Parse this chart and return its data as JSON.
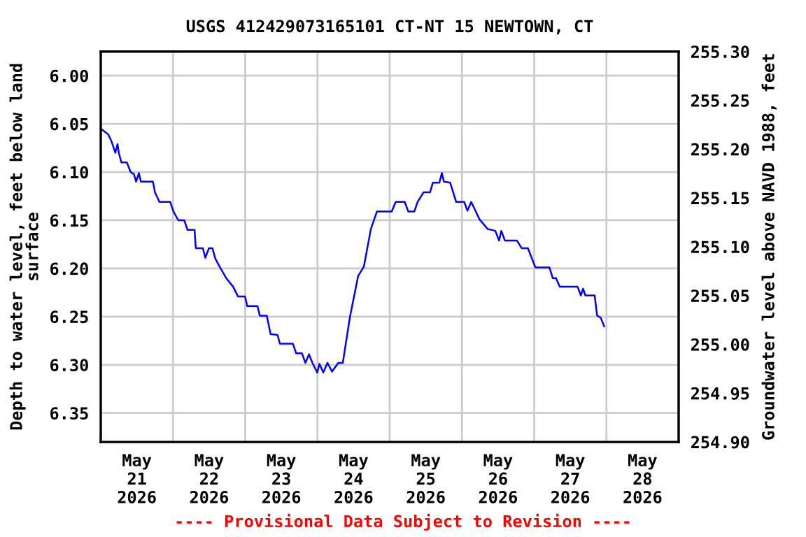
{
  "chart_data": {
    "type": "line",
    "title": "USGS 412429073165101 CT-NT 15 NEWTOWN, CT",
    "ylabel": "Depth to water level, feet below land\nsurface",
    "y2label": "Groundwater level above NAVD 1988, feet",
    "annotations": [
      "---- Provisional Data Subject to Revision ----"
    ],
    "xlim": [
      "2026-05-21T00:00",
      "2026-05-29T00:00"
    ],
    "xticks": [
      {
        "value": "2026-05-21T00:00",
        "label": null
      },
      {
        "value": "2026-05-22T00:00",
        "label": null
      },
      {
        "value": "2026-05-23T00:00",
        "label": null
      },
      {
        "value": "2026-05-24T00:00",
        "label": null
      },
      {
        "value": "2026-05-25T00:00",
        "label": null
      },
      {
        "value": "2026-05-26T00:00",
        "label": null
      },
      {
        "value": "2026-05-27T00:00",
        "label": null
      },
      {
        "value": "2026-05-28T00:00",
        "label": null
      },
      {
        "value": "2026-05-29T00:00",
        "label": null
      },
      {
        "value": "2026-05-21T12:00",
        "label": "May\n21\n2026"
      },
      {
        "value": "2026-05-22T12:00",
        "label": "May\n22\n2026"
      },
      {
        "value": "2026-05-23T12:00",
        "label": "May\n23\n2026"
      },
      {
        "value": "2026-05-24T12:00",
        "label": "May\n24\n2026"
      },
      {
        "value": "2026-05-25T12:00",
        "label": "May\n25\n2026"
      },
      {
        "value": "2026-05-26T12:00",
        "label": "May\n26\n2026"
      },
      {
        "value": "2026-05-27T12:00",
        "label": "May\n27\n2026"
      },
      {
        "value": "2026-05-28T12:00",
        "label": "May\n28\n2026"
      }
    ],
    "ylim": [
      6.38,
      5.975
    ],
    "yticks": [
      {
        "value": 6.0,
        "label": "6.00"
      },
      {
        "value": 6.05,
        "label": "6.05"
      },
      {
        "value": 6.1,
        "label": "6.10"
      },
      {
        "value": 6.15,
        "label": "6.15"
      },
      {
        "value": 6.2,
        "label": "6.20"
      },
      {
        "value": 6.25,
        "label": "6.25"
      },
      {
        "value": 6.3,
        "label": "6.30"
      },
      {
        "value": 6.35,
        "label": "6.35"
      }
    ],
    "y2lim": [
      254.9,
      255.3
    ],
    "y2ticks": [
      {
        "value": 254.9,
        "label": "254.90"
      },
      {
        "value": 254.95,
        "label": "254.95"
      },
      {
        "value": 255.0,
        "label": "255.00"
      },
      {
        "value": 255.05,
        "label": "255.05"
      },
      {
        "value": 255.1,
        "label": "255.10"
      },
      {
        "value": 255.15,
        "label": "255.15"
      },
      {
        "value": 255.2,
        "label": "255.20"
      },
      {
        "value": 255.25,
        "label": "255.25"
      },
      {
        "value": 255.3,
        "label": "255.30"
      }
    ],
    "grid": true,
    "legend": false,
    "marker": "none",
    "line_style": "solid",
    "series": [
      {
        "color": "#0000ff",
        "x": [
          "2026-05-21T00:00",
          "2026-05-21T02:30",
          "2026-05-21T03:40",
          "2026-05-21T04:50",
          "2026-05-21T05:35",
          "2026-05-21T06:00",
          "2026-05-21T06:50",
          "2026-05-21T08:40",
          "2026-05-21T09:55",
          "2026-05-21T11:00",
          "2026-05-21T11:45",
          "2026-05-21T12:40",
          "2026-05-21T13:20",
          "2026-05-21T17:20",
          "2026-05-21T18:00",
          "2026-05-21T19:30",
          "2026-05-21T23:05",
          "2026-05-22T00:10",
          "2026-05-22T01:45",
          "2026-05-22T03:45",
          "2026-05-22T04:50",
          "2026-05-22T07:10",
          "2026-05-22T07:35",
          "2026-05-22T09:55",
          "2026-05-22T10:45",
          "2026-05-22T11:55",
          "2026-05-22T13:05",
          "2026-05-22T14:05",
          "2026-05-22T15:40",
          "2026-05-22T17:40",
          "2026-05-22T20:00",
          "2026-05-22T21:35",
          "2026-05-22T23:55",
          "2026-05-23T00:40",
          "2026-05-23T04:05",
          "2026-05-23T04:50",
          "2026-05-23T07:10",
          "2026-05-23T08:25",
          "2026-05-23T10:45",
          "2026-05-23T11:30",
          "2026-05-23T15:50",
          "2026-05-23T16:55",
          "2026-05-23T18:50",
          "2026-05-23T20:00",
          "2026-05-23T21:10",
          "2026-05-23T22:20",
          "2026-05-23T23:55",
          "2026-05-24T00:40",
          "2026-05-24T01:55",
          "2026-05-24T03:20",
          "2026-05-24T04:50",
          "2026-05-24T06:55",
          "2026-05-24T08:25",
          "2026-05-24T10:45",
          "2026-05-24T13:30",
          "2026-05-24T15:25",
          "2026-05-24T17:45",
          "2026-05-24T19:45",
          "2026-05-25T00:40",
          "2026-05-25T02:00",
          "2026-05-25T05:00",
          "2026-05-25T06:10",
          "2026-05-25T08:10",
          "2026-05-25T09:15",
          "2026-05-25T11:15",
          "2026-05-25T13:25",
          "2026-05-25T14:20",
          "2026-05-25T16:30",
          "2026-05-25T17:20",
          "2026-05-25T18:00",
          "2026-05-25T20:05",
          "2026-05-25T22:05",
          "2026-05-26T00:45",
          "2026-05-26T01:50",
          "2026-05-26T03:05",
          "2026-05-26T05:50",
          "2026-05-26T08:30",
          "2026-05-26T11:05",
          "2026-05-26T12:20",
          "2026-05-26T13:05",
          "2026-05-26T14:15",
          "2026-05-26T18:15",
          "2026-05-26T19:50",
          "2026-05-26T21:55",
          "2026-05-27T00:25",
          "2026-05-27T05:05",
          "2026-05-27T06:10",
          "2026-05-27T07:15",
          "2026-05-27T08:30",
          "2026-05-27T14:25",
          "2026-05-27T15:30",
          "2026-05-27T16:15",
          "2026-05-27T17:00",
          "2026-05-27T20:05",
          "2026-05-27T20:55",
          "2026-05-27T22:05",
          "2026-05-27T23:15"
        ],
        "values": [
          6.055,
          6.061,
          6.069,
          6.08,
          6.071,
          6.08,
          6.09,
          6.09,
          6.1,
          6.102,
          6.11,
          6.101,
          6.11,
          6.11,
          6.121,
          6.131,
          6.131,
          6.141,
          6.15,
          6.15,
          6.16,
          6.16,
          6.179,
          6.179,
          6.189,
          6.179,
          6.179,
          6.19,
          6.199,
          6.21,
          6.219,
          6.229,
          6.229,
          6.239,
          6.239,
          6.249,
          6.249,
          6.268,
          6.269,
          6.278,
          6.278,
          6.288,
          6.288,
          6.298,
          6.289,
          6.298,
          6.308,
          6.299,
          6.308,
          6.298,
          6.307,
          6.298,
          6.298,
          6.251,
          6.208,
          6.198,
          6.159,
          6.141,
          6.141,
          6.131,
          6.131,
          6.141,
          6.141,
          6.131,
          6.121,
          6.121,
          6.111,
          6.111,
          6.101,
          6.11,
          6.111,
          6.131,
          6.131,
          6.14,
          6.131,
          6.149,
          6.159,
          6.161,
          6.171,
          6.161,
          6.171,
          6.171,
          6.179,
          6.179,
          6.199,
          6.199,
          6.21,
          6.21,
          6.219,
          6.219,
          6.228,
          6.221,
          6.228,
          6.228,
          6.249,
          6.251,
          6.26
        ]
      }
    ]
  }
}
